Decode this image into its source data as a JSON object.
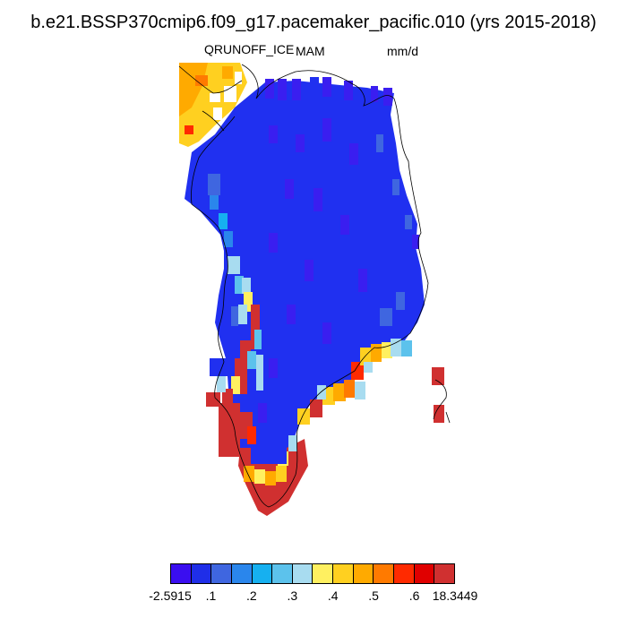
{
  "header": {
    "title": "b.e21.BSSP370cmip6.f09_g17.pacemaker_pacific.010 (yrs 2015-2018)",
    "variable": "QRUNOFF_ICE",
    "season": "MAM",
    "units": "mm/d"
  },
  "colorbar": {
    "colors": [
      "#3a0ef0",
      "#1f2ee8",
      "#3f66e0",
      "#2a86ec",
      "#16b0f0",
      "#5cc2ec",
      "#a8dcf0",
      "#fff060",
      "#ffd020",
      "#ffaa00",
      "#ff7a00",
      "#ff2a00",
      "#e00000",
      "#d03030"
    ],
    "tick_labels": [
      "-2.5915",
      ".1",
      ".2",
      ".3",
      ".4",
      ".5",
      ".6",
      "18.3449"
    ],
    "tick_label_positions": [
      0,
      2,
      4,
      6,
      8,
      10,
      12,
      14
    ]
  },
  "map": {
    "region": "Greenland",
    "field_colors": {
      "interior_low": "#2030f0",
      "interior_dark": "#3a1ef0",
      "margin_high": "#d03030",
      "margin_mid": "#ffd020",
      "margin_orange": "#ffaa00",
      "margin_light": "#a8dcf0",
      "coast_line": "#000000"
    }
  }
}
